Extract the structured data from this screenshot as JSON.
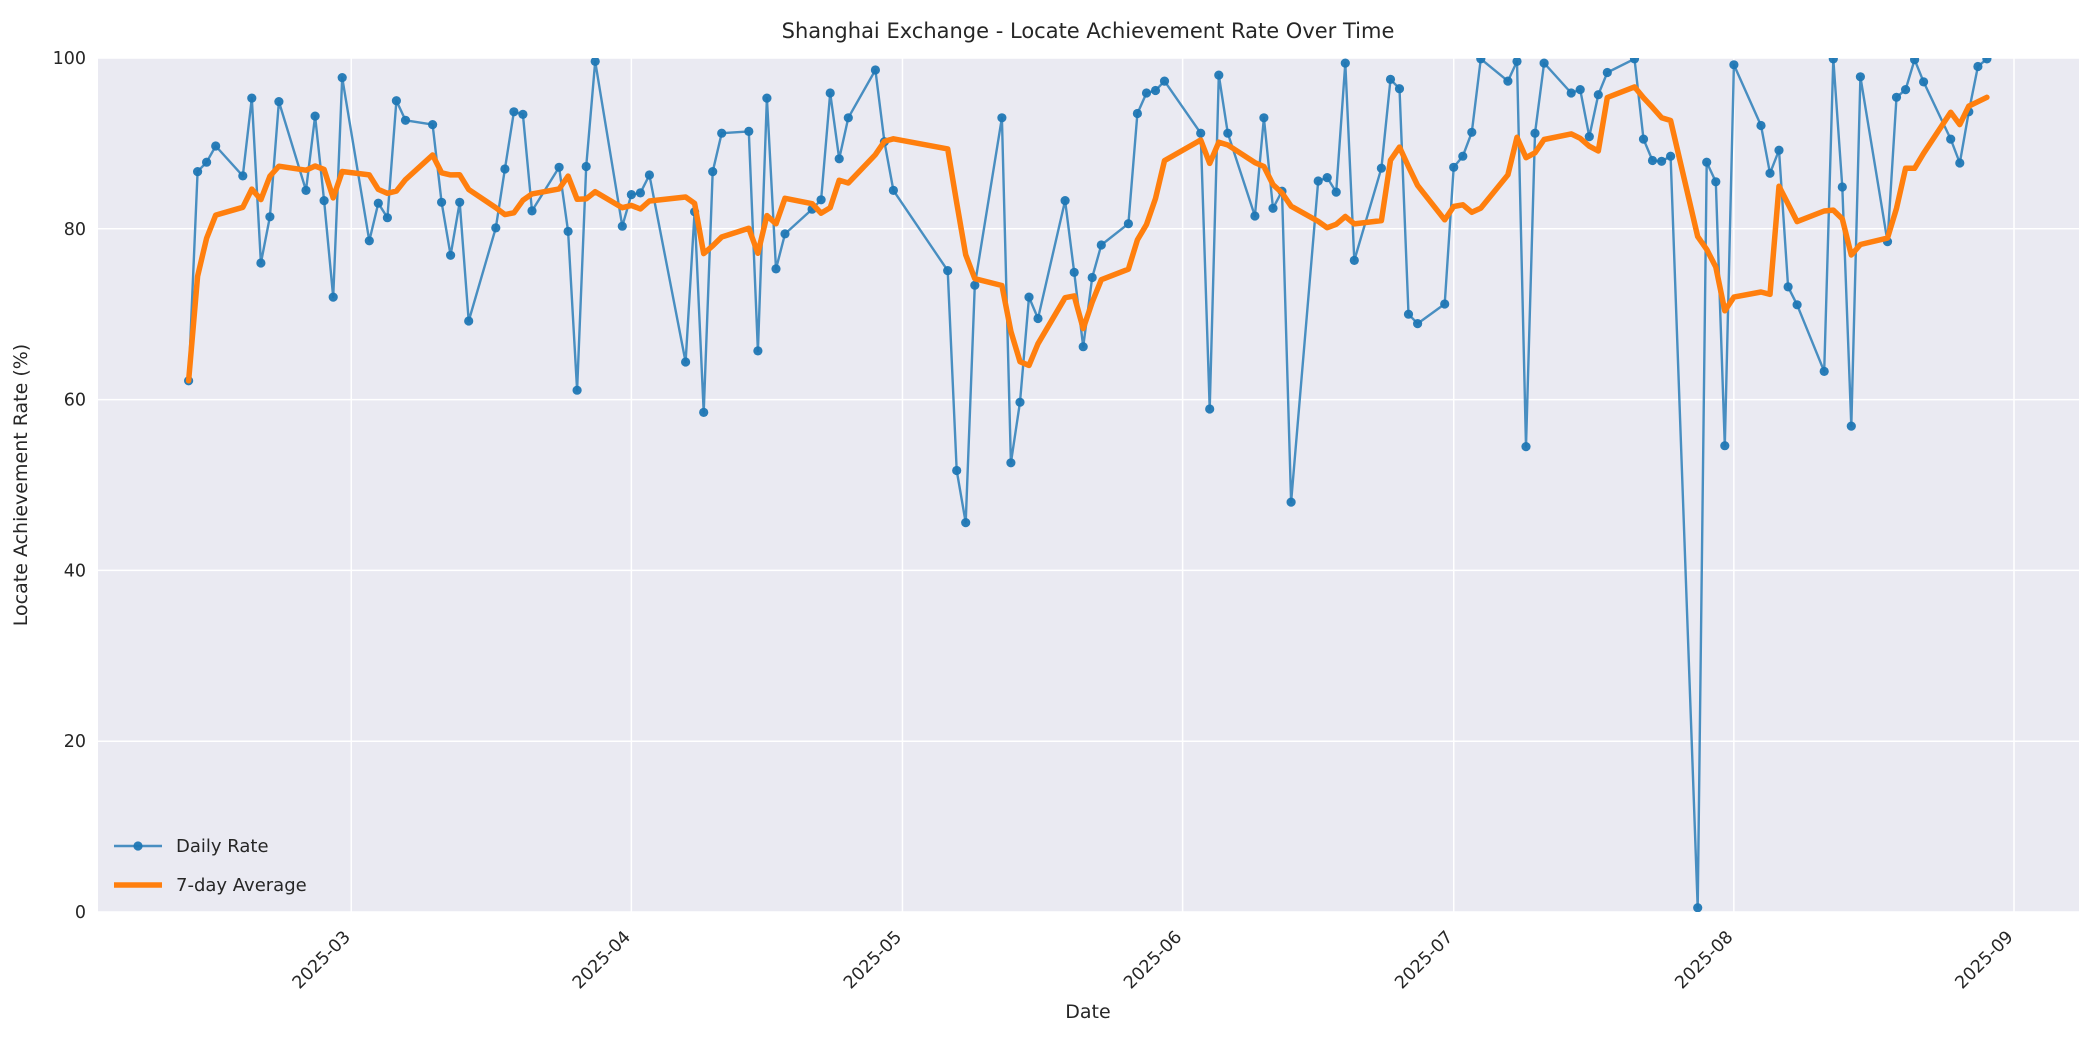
{
  "title": "Shanghai Exchange - Locate Achievement Rate Over Time",
  "axes": {
    "xlabel": "Date",
    "ylabel": "Locate Achievement Rate (%)",
    "x_tick_labels": [
      "2025-03",
      "2025-04",
      "2025-05",
      "2025-06",
      "2025-07",
      "2025-08",
      "2025-09"
    ],
    "x_tick_dates": [
      "2025-03-01",
      "2025-04-01",
      "2025-05-01",
      "2025-06-01",
      "2025-07-01",
      "2025-08-01",
      "2025-09-01"
    ],
    "y_tick_labels": [
      "0",
      "20",
      "40",
      "60",
      "80",
      "100"
    ],
    "y_tick_values": [
      0,
      20,
      40,
      60,
      80,
      100
    ],
    "ylim": [
      0,
      100
    ],
    "xlim": [
      "2025-02-01",
      "2025-09-08"
    ],
    "grid": "on",
    "background": "#eaeaf2",
    "grid_color": "#ffffff"
  },
  "legend": {
    "position": "lower-left",
    "items": [
      {
        "label": "Daily Rate",
        "color": "#1f77b4",
        "style": "line-with-marker"
      },
      {
        "label": "7-day Average",
        "color": "#ff7f0e",
        "style": "thick-line"
      }
    ]
  },
  "colors": {
    "daily_line": "rgba(31,119,180,0.8)",
    "daily_marker": "rgba(31,119,180,0.95)",
    "average_line": "#ff7f0e",
    "text": "#262626",
    "plot_bg": "#eaeaf2",
    "grid": "#ffffff",
    "figure_bg": "#ffffff"
  },
  "chart_data": {
    "type": "line",
    "title": "Shanghai Exchange - Locate Achievement Rate Over Time",
    "xlabel": "Date",
    "ylabel": "Locate Achievement Rate (%)",
    "ylim": [
      0,
      100
    ],
    "x_is_time": true,
    "note": "Daily locate achievement rate on trading days (weekends and CN market holidays absent). 7-day Average series is the trailing rolling mean over the last 7 data points (min_periods=1), drawn on top of the daily series.",
    "series": [
      {
        "name": "Daily Rate",
        "dates": [
          "2025-02-11",
          "2025-02-12",
          "2025-02-13",
          "2025-02-14",
          "2025-02-17",
          "2025-02-18",
          "2025-02-19",
          "2025-02-20",
          "2025-02-21",
          "2025-02-24",
          "2025-02-25",
          "2025-02-26",
          "2025-02-27",
          "2025-02-28",
          "2025-03-03",
          "2025-03-04",
          "2025-03-05",
          "2025-03-06",
          "2025-03-07",
          "2025-03-10",
          "2025-03-11",
          "2025-03-12",
          "2025-03-13",
          "2025-03-14",
          "2025-03-17",
          "2025-03-18",
          "2025-03-19",
          "2025-03-20",
          "2025-03-21",
          "2025-03-24",
          "2025-03-25",
          "2025-03-26",
          "2025-03-27",
          "2025-03-28",
          "2025-03-31",
          "2025-04-01",
          "2025-04-02",
          "2025-04-03",
          "2025-04-07",
          "2025-04-08",
          "2025-04-09",
          "2025-04-10",
          "2025-04-11",
          "2025-04-14",
          "2025-04-15",
          "2025-04-16",
          "2025-04-17",
          "2025-04-18",
          "2025-04-21",
          "2025-04-22",
          "2025-04-23",
          "2025-04-24",
          "2025-04-25",
          "2025-04-28",
          "2025-04-29",
          "2025-04-30",
          "2025-05-06",
          "2025-05-07",
          "2025-05-08",
          "2025-05-09",
          "2025-05-12",
          "2025-05-13",
          "2025-05-14",
          "2025-05-15",
          "2025-05-16",
          "2025-05-19",
          "2025-05-20",
          "2025-05-21",
          "2025-05-22",
          "2025-05-23",
          "2025-05-26",
          "2025-05-27",
          "2025-05-28",
          "2025-05-29",
          "2025-05-30",
          "2025-06-03",
          "2025-06-04",
          "2025-06-05",
          "2025-06-06",
          "2025-06-09",
          "2025-06-10",
          "2025-06-11",
          "2025-06-12",
          "2025-06-13",
          "2025-06-16",
          "2025-06-17",
          "2025-06-18",
          "2025-06-19",
          "2025-06-20",
          "2025-06-23",
          "2025-06-24",
          "2025-06-25",
          "2025-06-26",
          "2025-06-27",
          "2025-06-30",
          "2025-07-01",
          "2025-07-02",
          "2025-07-03",
          "2025-07-04",
          "2025-07-07",
          "2025-07-08",
          "2025-07-09",
          "2025-07-10",
          "2025-07-11",
          "2025-07-14",
          "2025-07-15",
          "2025-07-16",
          "2025-07-17",
          "2025-07-18",
          "2025-07-21",
          "2025-07-22",
          "2025-07-23",
          "2025-07-24",
          "2025-07-25",
          "2025-07-28",
          "2025-07-29",
          "2025-07-30",
          "2025-07-31",
          "2025-08-01",
          "2025-08-04",
          "2025-08-05",
          "2025-08-06",
          "2025-08-07",
          "2025-08-08",
          "2025-08-11",
          "2025-08-12",
          "2025-08-13",
          "2025-08-14",
          "2025-08-15",
          "2025-08-18",
          "2025-08-19",
          "2025-08-20",
          "2025-08-21",
          "2025-08-22",
          "2025-08-25",
          "2025-08-26",
          "2025-08-27",
          "2025-08-28",
          "2025-08-29"
        ],
        "values": [
          62.2,
          86.7,
          87.8,
          89.7,
          86.2,
          95.3,
          76.0,
          81.4,
          94.9,
          84.5,
          93.2,
          83.3,
          72.0,
          97.7,
          78.6,
          83.0,
          81.3,
          95.0,
          92.7,
          92.2,
          83.1,
          76.9,
          83.1,
          69.2,
          80.1,
          87.0,
          93.7,
          93.4,
          82.1,
          87.2,
          79.7,
          61.1,
          87.3,
          99.6,
          80.3,
          84.0,
          84.2,
          86.3,
          64.4,
          82.0,
          58.5,
          86.7,
          91.2,
          91.4,
          65.7,
          95.3,
          75.3,
          79.4,
          82.3,
          83.4,
          95.9,
          88.2,
          93.0,
          98.6,
          90.2,
          84.5,
          75.1,
          51.7,
          45.6,
          73.4,
          93.0,
          52.6,
          59.7,
          72.0,
          69.5,
          83.3,
          74.9,
          66.2,
          74.3,
          78.1,
          80.6,
          93.5,
          95.9,
          96.2,
          97.3,
          91.2,
          58.9,
          98.0,
          91.2,
          81.5,
          93.0,
          82.4,
          84.4,
          48.0,
          85.6,
          86.0,
          84.3,
          99.4,
          76.3,
          87.1,
          97.5,
          96.4,
          70.0,
          68.9,
          71.2,
          87.2,
          88.5,
          91.3,
          99.9,
          97.3,
          99.6,
          54.5,
          91.2,
          99.4,
          95.9,
          96.3,
          90.8,
          95.7,
          98.3,
          99.9,
          90.5,
          88.0,
          87.9,
          88.5,
          0.5,
          87.8,
          85.5,
          54.6,
          99.2,
          92.1,
          86.5,
          89.2,
          73.2,
          71.1,
          63.3,
          99.9,
          84.9,
          56.9,
          97.8,
          78.5,
          95.4,
          96.3,
          99.8,
          97.2,
          90.5,
          87.7,
          93.7,
          99.0,
          99.9
        ]
      },
      {
        "name": "7-day Average",
        "derived_from": "Daily Rate",
        "derivation": "rolling_mean(window=7 points, min_periods=1)"
      }
    ]
  }
}
